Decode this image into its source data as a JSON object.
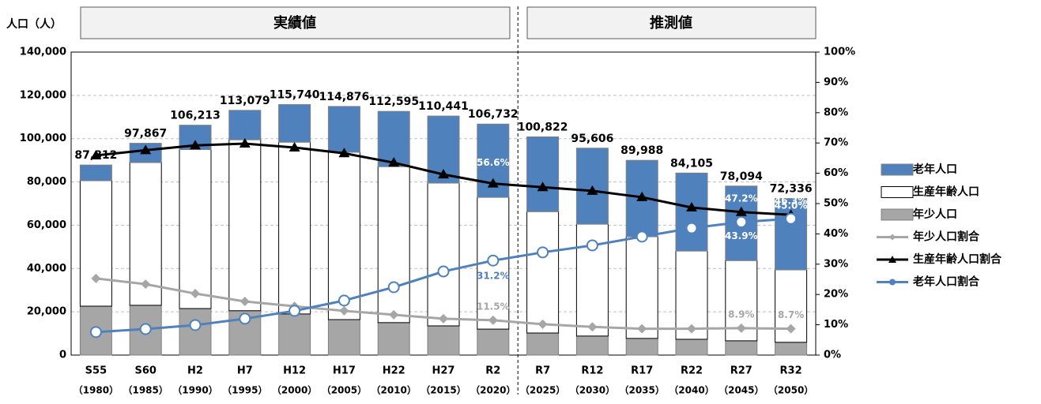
{
  "chart_data": {
    "type": "bar",
    "stacked": true,
    "y_label": "人口（人）",
    "annotations": [
      "実績値",
      "推測値"
    ],
    "categories": [
      "S55",
      "S60",
      "H2",
      "H7",
      "H12",
      "H17",
      "H22",
      "H27",
      "R2",
      "R7",
      "R12",
      "R17",
      "R22",
      "R27",
      "R32"
    ],
    "category_years": [
      "（1980）",
      "（1985）",
      "（1990）",
      "（1995）",
      "（2000）",
      "（2005）",
      "（2010）",
      "（2015）",
      "（2020）",
      "（2025）",
      "（2030）",
      "（2035）",
      "（2040）",
      "（2045）",
      "（2050）"
    ],
    "ylim": [
      0,
      140000
    ],
    "yticks": [
      0,
      {
        "value": 20000,
        "label": "20,000"
      },
      {
        "value": 40000,
        "label": "40,000"
      },
      {
        "value": 60000,
        "label": "60,000"
      },
      {
        "value": 80000,
        "label": "80,000"
      },
      {
        "value": 100000,
        "label": "100,000"
      },
      {
        "value": 120000,
        "label": "120,000"
      },
      {
        "value": 140000,
        "label": "140,000"
      }
    ],
    "y2lim": [
      0,
      100
    ],
    "y2ticks": [
      {
        "value": 0,
        "label": "0%"
      },
      {
        "value": 10,
        "label": "10%"
      },
      {
        "value": 20,
        "label": "20%"
      },
      {
        "value": 30,
        "label": "30%"
      },
      {
        "value": 40,
        "label": "40%"
      },
      {
        "value": 50,
        "label": "50%"
      },
      {
        "value": 60,
        "label": "60%"
      },
      {
        "value": 70,
        "label": "70%"
      },
      {
        "value": 80,
        "label": "80%"
      },
      {
        "value": 90,
        "label": "90%"
      },
      {
        "value": 100,
        "label": "100%"
      }
    ],
    "grid": true,
    "legend": "right",
    "totals": {
      "values": [
        87812,
        97867,
        106213,
        113079,
        115740,
        114876,
        112595,
        110441,
        106732,
        100822,
        95606,
        89988,
        84105,
        78094,
        72336
      ],
      "value_labels": [
        "87,812",
        "97,867",
        "106,213",
        "113,079",
        "115,740",
        "114,876",
        "112,595",
        "110,441",
        "106,732",
        "100,822",
        "95,606",
        "89,988",
        "84,105",
        "78,094",
        "72,336"
      ]
    },
    "series": [
      {
        "name": "年少人口",
        "color": "#a6a6a6",
        "values": [
          22600,
          23000,
          21500,
          20500,
          19000,
          16400,
          15000,
          13500,
          12000,
          10200,
          8800,
          7700,
          7300,
          6600,
          5900
        ]
      },
      {
        "name": "生産年齢人口",
        "color": "#ffffff",
        "values": [
          58000,
          66000,
          73500,
          79000,
          79400,
          77300,
          72100,
          66000,
          60900,
          56100,
          51700,
          47000,
          40800,
          37100,
          33500
        ]
      },
      {
        "name": "老年人口",
        "color": "#4f81bd",
        "values": [
          7212,
          8867,
          11213,
          13579,
          17340,
          21176,
          25495,
          30941,
          33832,
          34522,
          35106,
          35288,
          36005,
          34394,
          32936
        ]
      },
      {
        "name": "年少人口割合",
        "type": "line",
        "axis": "y2",
        "marker": "diamond",
        "color": "#a6a6a6",
        "values": [
          25.3,
          23.4,
          20.3,
          17.7,
          16.1,
          14.6,
          13.3,
          12.0,
          11.5,
          10.2,
          9.3,
          8.7,
          8.7,
          8.9,
          8.7
        ],
        "value_labels": [
          null,
          null,
          null,
          null,
          null,
          null,
          null,
          null,
          "11.5%",
          null,
          null,
          null,
          null,
          "8.9%",
          "8.7%"
        ]
      },
      {
        "name": "生産年齢人口割合",
        "type": "line",
        "axis": "y2",
        "marker": "triangle",
        "color": "#000000",
        "values": [
          65.9,
          67.6,
          69.2,
          69.8,
          68.5,
          66.6,
          63.5,
          59.6,
          56.6,
          55.4,
          54.2,
          52.1,
          48.7,
          47.2,
          46.3
        ],
        "value_labels": [
          null,
          null,
          null,
          null,
          null,
          null,
          null,
          null,
          "56.6%",
          null,
          null,
          null,
          null,
          "47.2%",
          "46.3%"
        ]
      },
      {
        "name": "老年人口割合",
        "type": "line",
        "axis": "y2",
        "marker": "circle",
        "color": "#4f81bd",
        "values": [
          7.6,
          8.6,
          9.9,
          12.0,
          14.6,
          18.0,
          22.4,
          27.6,
          31.2,
          33.9,
          36.2,
          39.1,
          41.9,
          43.9,
          45.0
        ],
        "value_labels": [
          null,
          null,
          null,
          null,
          null,
          null,
          null,
          null,
          "31.2%",
          null,
          null,
          null,
          null,
          "43.9%",
          "45.0%"
        ]
      }
    ]
  }
}
